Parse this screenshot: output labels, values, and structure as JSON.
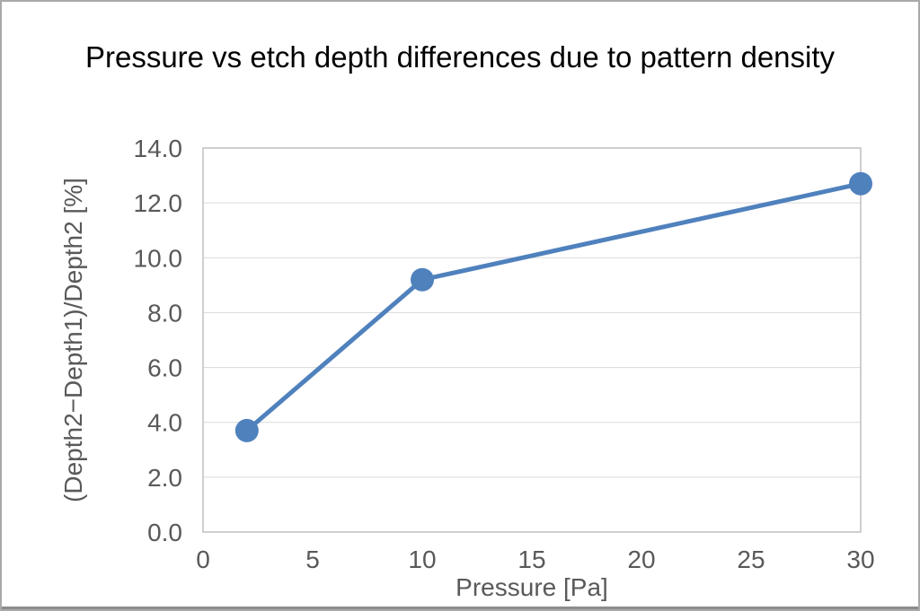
{
  "chart_data": {
    "type": "line",
    "title": "Pressure vs etch depth differences due to pattern density",
    "xlabel": "Pressure [Pa]",
    "ylabel": "(Depth2−Depth1)/Depth2 [%]",
    "x": [
      2,
      10,
      30
    ],
    "y": [
      3.7,
      9.2,
      12.7
    ],
    "xlim": [
      0,
      30
    ],
    "ylim": [
      0,
      14
    ],
    "x_ticks": [
      0,
      5,
      10,
      15,
      20,
      25,
      30
    ],
    "y_ticks": [
      0,
      2,
      4,
      6,
      8,
      10,
      12,
      14
    ],
    "y_tick_decimals": 1,
    "grid": "horizontal",
    "legend": "none",
    "marker": "circle",
    "series_color": "#4F81BD",
    "gridline_color": "#D9D9D9",
    "plot_border_color": "#BFBFBF",
    "tick_text_color": "#595959",
    "title_color": "#000000"
  }
}
